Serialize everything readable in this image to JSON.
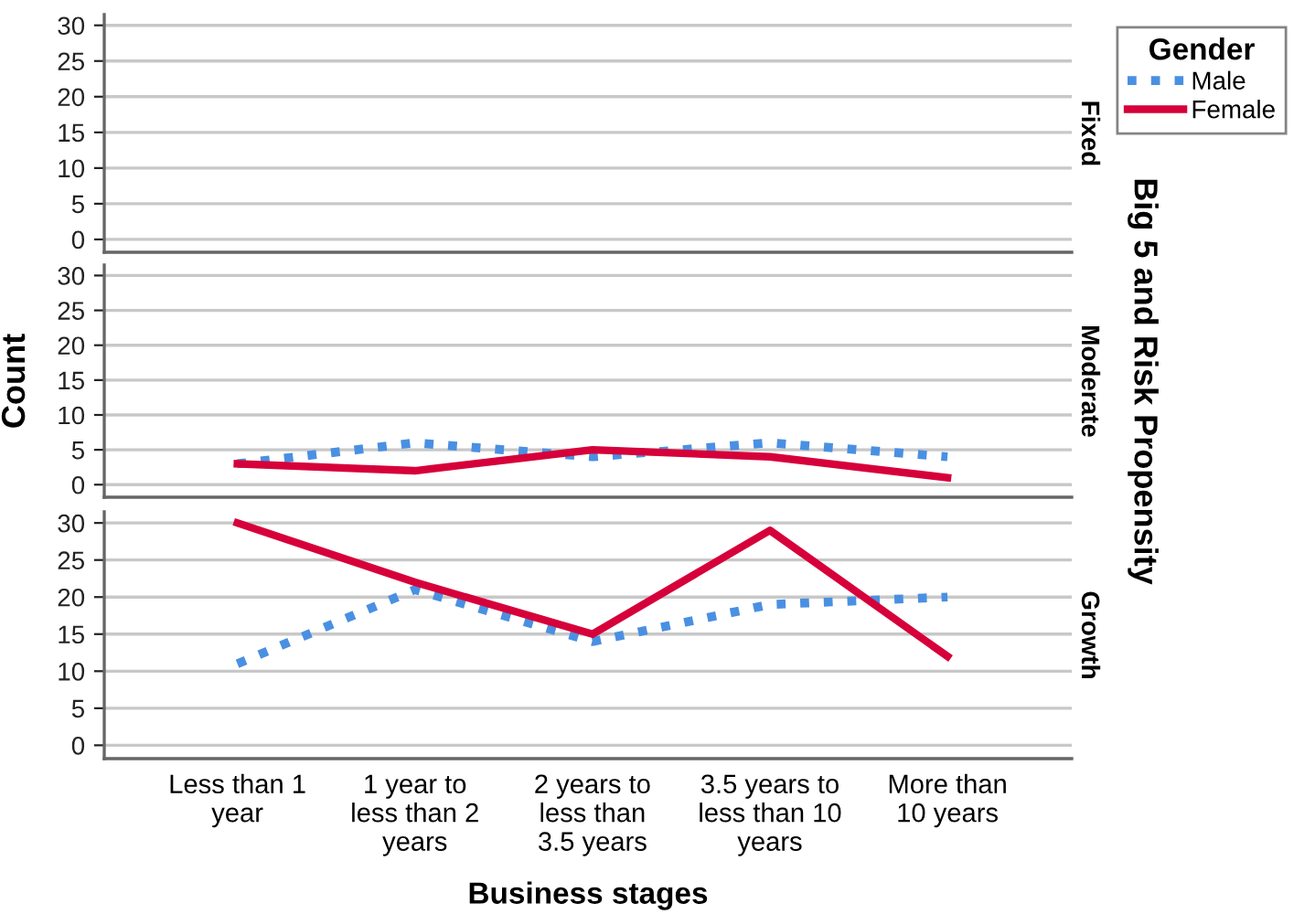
{
  "chart_data": [
    {
      "type": "line",
      "title": "Fixed",
      "categories": [
        null,
        null,
        null,
        null,
        null
      ],
      "ylim": [
        -1.8,
        31.5
      ],
      "yticks": [
        0,
        5,
        10,
        15,
        20,
        25,
        30
      ],
      "grid": "y",
      "tick_labels": "y",
      "legend": "top right",
      "legend_title": "Gender",
      "series": [
        {
          "name": "Male",
          "color": "#4a90e2",
          "line_style": "dotted",
          "values": [
            null,
            null,
            null,
            null,
            null
          ]
        },
        {
          "name": "Female",
          "color": "#d6003a",
          "line_style": "solid",
          "values": [
            null,
            null,
            null,
            null,
            null
          ]
        }
      ]
    },
    {
      "type": "line",
      "title": "Moderate",
      "ylabel": "Count",
      "y2label": "Big 5 and Risk Propensity",
      "categories": [
        null,
        null,
        null,
        null,
        null
      ],
      "ylim": [
        -1.8,
        31.5
      ],
      "yticks": [
        0,
        5,
        10,
        15,
        20,
        25,
        30
      ],
      "grid": "y",
      "tick_labels": "y",
      "series": [
        {
          "color": "#4a90e2",
          "line_style": "dotted",
          "values": [
            3,
            6,
            4,
            6,
            4
          ]
        },
        {
          "color": "#d6003a",
          "line_style": "solid",
          "values": [
            3,
            2,
            5,
            4,
            1
          ]
        }
      ]
    },
    {
      "type": "line",
      "title": "Growth",
      "xlabel": "Business stages",
      "categories": [
        "Less than 1\nyear",
        "1 year to\nless than 2\nyears",
        "2 years to\nless than\n3.5 years",
        "3.5 years to\nless than 10\nyears",
        "More than\n10 years"
      ],
      "ylim": [
        -1.8,
        31.5
      ],
      "yticks": [
        0,
        5,
        10,
        15,
        20,
        25,
        30
      ],
      "grid": "y",
      "series": [
        {
          "color": "#4a90e2",
          "line_style": "dotted",
          "values": [
            11,
            21,
            14,
            19,
            20
          ]
        },
        {
          "color": "#d6003a",
          "line_style": "solid",
          "values": [
            30,
            22,
            15,
            29,
            12
          ]
        }
      ]
    }
  ]
}
